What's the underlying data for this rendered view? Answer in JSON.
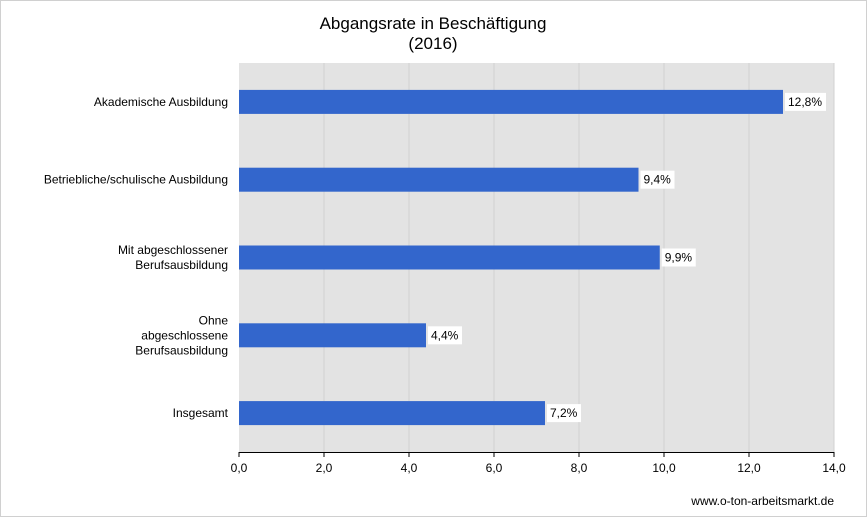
{
  "chart_data": {
    "type": "bar",
    "orientation": "horizontal",
    "title": [
      "Abgangsrate in Beschäftigung",
      "(2016)"
    ],
    "categories": [
      [
        "Akademische Ausbildung"
      ],
      [
        "Betriebliche/schulische Ausbildung"
      ],
      [
        "Mit abgeschlossener",
        "Berufsausbildung"
      ],
      [
        "Ohne",
        "abgeschlossene",
        "Berufsausbildung"
      ],
      [
        "Insgesamt"
      ]
    ],
    "values": [
      12.8,
      9.4,
      9.9,
      4.4,
      7.2
    ],
    "data_labels": [
      "12,8%",
      "9,4%",
      "9,9%",
      "4,4%",
      "7,2%"
    ],
    "xlim": [
      0,
      14
    ],
    "x_ticks": [
      0,
      2,
      4,
      6,
      8,
      10,
      12,
      14
    ],
    "x_tick_labels": [
      "0,0",
      "2,0",
      "4,0",
      "6,0",
      "8,0",
      "10,0",
      "12,0",
      "14,0"
    ],
    "grid": true,
    "legend": "none",
    "colors": {
      "bar": "#3366cc",
      "plot_background": "#e3e3e3",
      "gridline": "#d0d0d0",
      "axis": "#000000"
    }
  },
  "source": "www.o-ton-arbeitsmarkt.de"
}
